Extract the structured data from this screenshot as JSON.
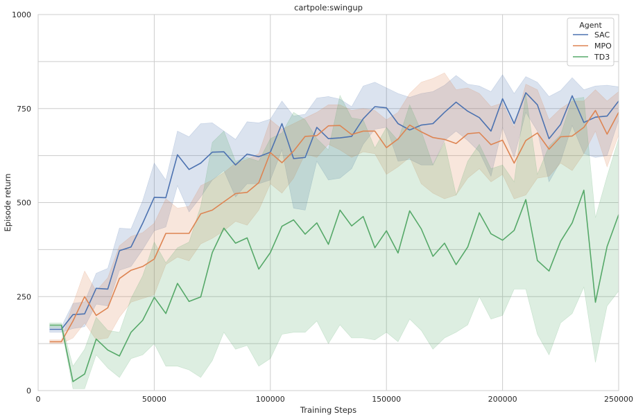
{
  "chart_data": {
    "type": "line",
    "title": "cartpole:swingup",
    "xlabel": "Training Steps",
    "ylabel": "Episode return",
    "xlim": [
      0,
      250000
    ],
    "ylim": [
      0,
      1000
    ],
    "xticks": [
      0,
      50000,
      100000,
      150000,
      200000,
      250000
    ],
    "xtick_labels": [
      "0",
      "50000",
      "100000",
      "150000",
      "200000",
      "250000"
    ],
    "yticks": [
      0,
      250,
      500,
      750,
      1000
    ],
    "ytick_labels": [
      "0",
      "250",
      "500",
      "750",
      "1000"
    ],
    "ygrid": [
      0,
      125,
      250,
      375,
      500,
      625,
      750,
      875,
      1000
    ],
    "grid": true,
    "legend": {
      "title": "Agent",
      "position": "top-right"
    },
    "x": [
      5000,
      10000,
      15000,
      20000,
      25000,
      30000,
      35000,
      40000,
      45000,
      50000,
      55000,
      60000,
      65000,
      70000,
      75000,
      80000,
      85000,
      90000,
      95000,
      100000,
      105000,
      110000,
      115000,
      120000,
      125000,
      130000,
      135000,
      140000,
      145000,
      150000,
      155000,
      160000,
      165000,
      170000,
      175000,
      180000,
      185000,
      190000,
      195000,
      200000,
      205000,
      210000,
      215000,
      220000,
      225000,
      230000,
      235000,
      240000,
      245000,
      250000
    ],
    "series": [
      {
        "name": "SAC",
        "color": "#4c72b0",
        "values": [
          163,
          163,
          202,
          204,
          272,
          270,
          372,
          382,
          445,
          514,
          513,
          627,
          588,
          605,
          634,
          635,
          600,
          629,
          622,
          634,
          710,
          617,
          620,
          700,
          670,
          672,
          676,
          723,
          755,
          752,
          710,
          693,
          706,
          710,
          740,
          767,
          743,
          726,
          690,
          776,
          710,
          792,
          760,
          670,
          708,
          784,
          713,
          727,
          730,
          770
        ],
        "upper": [
          170,
          170,
          232,
          236,
          312,
          325,
          432,
          430,
          505,
          605,
          560,
          690,
          675,
          710,
          712,
          690,
          668,
          715,
          712,
          722,
          770,
          730,
          735,
          778,
          782,
          775,
          755,
          810,
          820,
          805,
          790,
          780,
          790,
          795,
          812,
          838,
          815,
          810,
          795,
          840,
          790,
          835,
          820,
          782,
          798,
          832,
          800,
          810,
          812,
          808
        ],
        "lower": [
          155,
          155,
          165,
          170,
          230,
          225,
          320,
          330,
          375,
          425,
          435,
          545,
          475,
          515,
          560,
          585,
          515,
          550,
          550,
          560,
          640,
          485,
          480,
          610,
          560,
          565,
          590,
          655,
          695,
          700,
          610,
          615,
          600,
          600,
          665,
          690,
          665,
          635,
          570,
          700,
          620,
          740,
          690,
          555,
          610,
          705,
          630,
          620,
          625,
          720
        ]
      },
      {
        "name": "MPO",
        "color": "#dd8452",
        "values": [
          130,
          130,
          185,
          250,
          200,
          220,
          298,
          320,
          330,
          350,
          418,
          418,
          418,
          470,
          480,
          502,
          524,
          527,
          553,
          633,
          606,
          637,
          676,
          678,
          704,
          705,
          681,
          690,
          690,
          646,
          669,
          706,
          688,
          673,
          668,
          657,
          683,
          686,
          654,
          666,
          605,
          665,
          685,
          642,
          675,
          677,
          700,
          745,
          682,
          740
        ],
        "upper": [
          135,
          135,
          230,
          318,
          265,
          300,
          385,
          410,
          420,
          445,
          510,
          485,
          490,
          545,
          560,
          580,
          605,
          615,
          630,
          720,
          695,
          710,
          725,
          740,
          760,
          760,
          745,
          750,
          745,
          720,
          740,
          790,
          820,
          830,
          845,
          800,
          805,
          790,
          755,
          765,
          700,
          815,
          800,
          720,
          750,
          770,
          770,
          800,
          770,
          795
        ],
        "lower": [
          125,
          125,
          140,
          180,
          135,
          140,
          195,
          235,
          245,
          255,
          335,
          355,
          345,
          390,
          405,
          425,
          450,
          440,
          480,
          550,
          525,
          565,
          630,
          620,
          655,
          640,
          620,
          635,
          630,
          575,
          595,
          620,
          550,
          525,
          510,
          520,
          565,
          590,
          555,
          575,
          510,
          520,
          565,
          570,
          605,
          585,
          630,
          690,
          595,
          680
        ]
      },
      {
        "name": "TD3",
        "color": "#55a868",
        "values": [
          174,
          174,
          24,
          44,
          137,
          108,
          92,
          155,
          187,
          248,
          205,
          285,
          237,
          249,
          367,
          432,
          392,
          406,
          323,
          367,
          437,
          454,
          416,
          446,
          389,
          480,
          438,
          463,
          380,
          425,
          366,
          478,
          430,
          357,
          392,
          335,
          382,
          473,
          417,
          400,
          426,
          508,
          346,
          318,
          397,
          446,
          533,
          235,
          383,
          468
        ],
        "upper": [
          180,
          180,
          65,
          110,
          195,
          160,
          155,
          245,
          305,
          395,
          340,
          380,
          395,
          490,
          660,
          690,
          610,
          620,
          610,
          670,
          685,
          740,
          720,
          670,
          640,
          785,
          725,
          720,
          645,
          700,
          665,
          760,
          690,
          600,
          660,
          520,
          610,
          655,
          590,
          600,
          555,
          790,
          575,
          650,
          680,
          775,
          780,
          460,
          570,
          670
        ],
        "lower": [
          168,
          168,
          5,
          5,
          95,
          60,
          35,
          85,
          95,
          125,
          65,
          65,
          55,
          35,
          80,
          155,
          110,
          120,
          65,
          85,
          150,
          155,
          155,
          185,
          125,
          175,
          140,
          140,
          135,
          155,
          130,
          190,
          160,
          110,
          140,
          155,
          175,
          250,
          190,
          200,
          270,
          270,
          150,
          95,
          180,
          205,
          275,
          75,
          225,
          265
        ]
      }
    ]
  }
}
